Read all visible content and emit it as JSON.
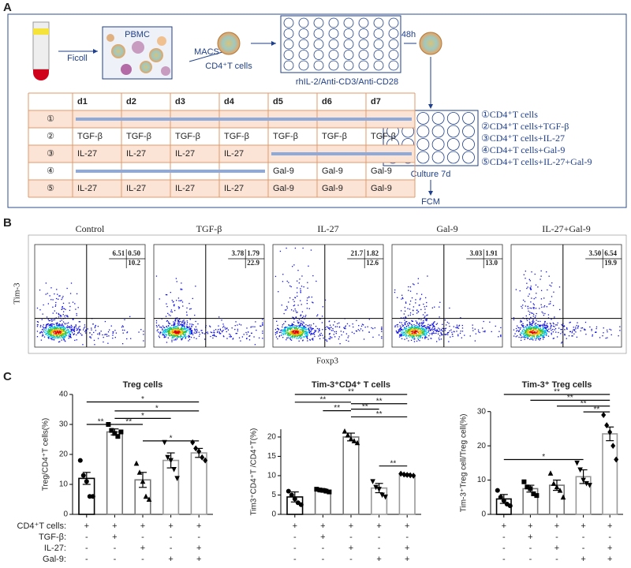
{
  "panel_a": {
    "label": "A",
    "ficoll": "Ficoll",
    "pbmc": "PBMC",
    "macs": "MACS",
    "cd4_cells": "CD4⁺T cells",
    "time_48h": "48h",
    "stimulation": "rhIL-2/Anti-CD3/Anti-CD28",
    "culture": "Culture 7d",
    "fcm": "FCM",
    "table": {
      "header": [
        "d1",
        "d2",
        "d3",
        "d4",
        "d5",
        "d6",
        "d7"
      ],
      "rows": [
        {
          "marker": "①",
          "cells": [
            null,
            null,
            null,
            null,
            null,
            null,
            null
          ]
        },
        {
          "marker": "②",
          "cells": [
            "TGF-β",
            "TGF-β",
            "TGF-β",
            "TGF-β",
            "TGF-β",
            "TGF-β",
            "TGF-β"
          ]
        },
        {
          "marker": "③",
          "cells": [
            "IL-27",
            "IL-27",
            "IL-27",
            "IL-27",
            null,
            null,
            null
          ]
        },
        {
          "marker": "④",
          "cells": [
            null,
            null,
            null,
            null,
            "Gal-9",
            "Gal-9",
            "Gal-9"
          ]
        },
        {
          "marker": "⑤",
          "cells": [
            "IL-27",
            "IL-27",
            "IL-27",
            "IL-27",
            "Gal-9",
            "Gal-9",
            "Gal-9"
          ]
        }
      ]
    },
    "groups": [
      "①CD4⁺T cells",
      "②CD4⁺T cells+TGF-β",
      "③CD4⁺T cells+IL-27",
      "④CD4+T cells+Gal-9",
      "⑤CD4+T cells+IL-27+Gal-9"
    ]
  },
  "panel_b": {
    "label": "B",
    "y_label": "Tim-3",
    "x_label": "Foxp3",
    "plots": [
      {
        "title": "Control",
        "quadrants": [
          "6.51",
          "0.50",
          "10.2"
        ]
      },
      {
        "title": "TGF-β",
        "quadrants": [
          "3.78",
          "1.79",
          "22.9"
        ]
      },
      {
        "title": "IL-27",
        "quadrants": [
          "21.7",
          "1.82",
          "12.6"
        ]
      },
      {
        "title": "Gal-9",
        "quadrants": [
          "3.03",
          "1.91",
          "13.0"
        ]
      },
      {
        "title": "IL-27+Gal-9",
        "quadrants": [
          "3.50",
          "6.54",
          "19.9"
        ]
      }
    ]
  },
  "panel_c": {
    "label": "C",
    "treatments": [
      {
        "label": "CD4⁺T cells:",
        "signs": [
          "+",
          "+",
          "+",
          "+",
          "+"
        ]
      },
      {
        "label": "TGF-β:",
        "signs": [
          "-",
          "+",
          "-",
          "-",
          "-"
        ]
      },
      {
        "label": "IL-27:",
        "signs": [
          "-",
          "-",
          "+",
          "-",
          "+"
        ]
      },
      {
        "label": "Gal-9:",
        "signs": [
          "-",
          "-",
          "-",
          "+",
          "+"
        ]
      }
    ]
  },
  "chart_data": [
    {
      "type": "bar",
      "title": "Treg cells",
      "y_label": "Treg/CD4⁺T cells(%)",
      "ylim": [
        0,
        40
      ],
      "yticks": [
        0,
        10,
        20,
        30,
        40
      ],
      "values": [
        12,
        27.5,
        11.5,
        18,
        20.5
      ],
      "errors": [
        2,
        1,
        2.5,
        2.5,
        1.5
      ],
      "points": [
        [
          18,
          13,
          11,
          6,
          6
        ],
        [
          30,
          28,
          27,
          26,
          27.5
        ],
        [
          17,
          14,
          11,
          6,
          5
        ],
        [
          24,
          19,
          18,
          15,
          12
        ],
        [
          24,
          22,
          21,
          19,
          18
        ]
      ],
      "edge_colors": [
        "#000000",
        "#777777",
        "#777777",
        "#999999",
        "#999999"
      ],
      "markers": [
        "circle",
        "square",
        "triangle",
        "triangle-down",
        "diamond"
      ],
      "significance": [
        {
          "from": 0,
          "to": 4,
          "y": 37.5,
          "label": "*"
        },
        {
          "from": 1,
          "to": 4,
          "y": 34.5,
          "label": "*"
        },
        {
          "from": 1,
          "to": 3,
          "y": 32,
          "label": "*"
        },
        {
          "from": 1,
          "to": 2,
          "y": 30,
          "label": "**"
        },
        {
          "from": 0,
          "to": 1,
          "y": 30,
          "label": "**"
        },
        {
          "from": 2,
          "to": 4,
          "y": 24.5,
          "label": "*"
        }
      ]
    },
    {
      "type": "bar",
      "title": "Tim-3⁺CD4⁺ T cells",
      "y_label": "Tim3⁺CD4⁺T /CD4⁺T(%)",
      "ylim": [
        0,
        22
      ],
      "yticks": [
        0,
        5,
        10,
        15,
        20
      ],
      "values": [
        4.5,
        6.2,
        20,
        6.8,
        10.2
      ],
      "errors": [
        1.3,
        0.4,
        1,
        1.2,
        0.3
      ],
      "points": [
        [
          6,
          5,
          4,
          3,
          2.5
        ],
        [
          6.5,
          6.3,
          6.2,
          6,
          5.8
        ],
        [
          21.5,
          20.5,
          19.5,
          19,
          18.5
        ],
        [
          8.5,
          7,
          6.5,
          5,
          4.5
        ],
        [
          10.5,
          10.3,
          10.2,
          10.1,
          10
        ]
      ],
      "edge_colors": [
        "#000000",
        "#777777",
        "#777777",
        "#999999",
        "#999999"
      ],
      "markers": [
        "circle",
        "square",
        "triangle",
        "triangle-down",
        "diamond"
      ],
      "significance": [
        {
          "from": 0,
          "to": 4,
          "y": 31,
          "label": "**"
        },
        {
          "from": 0,
          "to": 2,
          "y": 29,
          "label": "**"
        },
        {
          "from": 2,
          "to": 4,
          "y": 28.6,
          "label": "**"
        },
        {
          "from": 1,
          "to": 2,
          "y": 26.8,
          "label": "**"
        },
        {
          "from": 2,
          "to": 3,
          "y": 27.2,
          "label": "**"
        },
        {
          "from": 2,
          "to": 4,
          "y": 25.2,
          "label": "**"
        },
        {
          "from": 3,
          "to": 4,
          "y": 12.5,
          "label": "**"
        }
      ]
    },
    {
      "type": "bar",
      "title": "Tim-3⁺ Treg cells",
      "y_label": "Tim-3⁺Treg cell/Treg cell(%)",
      "ylim": [
        0,
        30
      ],
      "yticks": [
        0,
        10,
        20,
        30
      ],
      "values": [
        4.5,
        7.5,
        8.5,
        11,
        23.5
      ],
      "errors": [
        1.3,
        1,
        1.5,
        2,
        2
      ],
      "points": [
        [
          7,
          5,
          4,
          3,
          2.5
        ],
        [
          9.5,
          8,
          7.5,
          6,
          5.5
        ],
        [
          12,
          9,
          8,
          7,
          5
        ],
        [
          15,
          13,
          10,
          9,
          8.5
        ],
        [
          29,
          26,
          24,
          20,
          16
        ]
      ],
      "edge_colors": [
        "#000000",
        "#777777",
        "#777777",
        "#999999",
        "#999999"
      ],
      "markers": [
        "circle",
        "square",
        "triangle",
        "triangle-down",
        "diamond"
      ],
      "significance": [
        {
          "from": 0,
          "to": 4,
          "y": 35,
          "label": "**"
        },
        {
          "from": 1,
          "to": 4,
          "y": 33.3,
          "label": "**"
        },
        {
          "from": 2,
          "to": 4,
          "y": 31.6,
          "label": "**"
        },
        {
          "from": 3,
          "to": 4,
          "y": 29.9,
          "label": "**"
        },
        {
          "from": 0,
          "to": 3,
          "y": 16,
          "label": "*"
        }
      ]
    }
  ]
}
